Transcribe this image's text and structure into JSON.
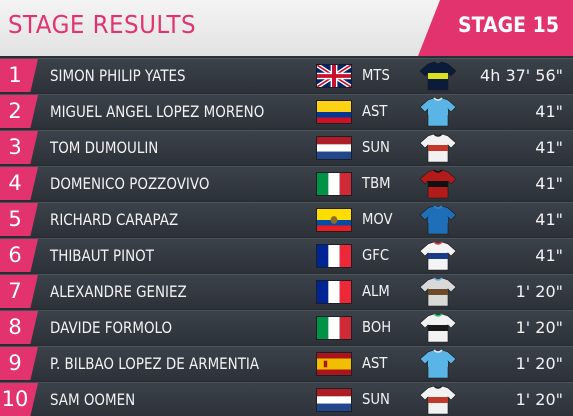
{
  "header": {
    "title": "STAGE RESULTS",
    "stage": "STAGE 15",
    "accent_color": "#e2336e"
  },
  "rows": [
    {
      "pos": "1",
      "name": "SIMON PHILIP YATES",
      "flag": "gbr-flag",
      "team": "MTS",
      "jersey": "mitchelton-scott-jersey",
      "time": "4h 37' 56\""
    },
    {
      "pos": "2",
      "name": "MIGUEL ANGEL LOPEZ MORENO",
      "flag": "col-flag",
      "team": "AST",
      "jersey": "astana-jersey",
      "time": "41\""
    },
    {
      "pos": "3",
      "name": "TOM DUMOULIN",
      "flag": "ned-flag",
      "team": "SUN",
      "jersey": "sunweb-jersey",
      "time": "41\""
    },
    {
      "pos": "4",
      "name": "DOMENICO POZZOVIVO",
      "flag": "ita-flag",
      "team": "TBM",
      "jersey": "bahrain-merida-jersey",
      "time": "41\""
    },
    {
      "pos": "5",
      "name": "RICHARD CARAPAZ",
      "flag": "ecu-flag",
      "team": "MOV",
      "jersey": "movistar-jersey",
      "time": "41\""
    },
    {
      "pos": "6",
      "name": "THIBAUT PINOT",
      "flag": "fra-flag",
      "team": "GFC",
      "jersey": "groupama-fdj-jersey",
      "time": "41\""
    },
    {
      "pos": "7",
      "name": "ALEXANDRE GENIEZ",
      "flag": "fra-flag",
      "team": "ALM",
      "jersey": "ag2r-jersey",
      "time": "1' 20\""
    },
    {
      "pos": "8",
      "name": "DAVIDE FORMOLO",
      "flag": "ita-flag",
      "team": "BOH",
      "jersey": "bora-hansgrohe-jersey",
      "time": "1' 20\""
    },
    {
      "pos": "9",
      "name": "P. BILBAO LOPEZ DE ARMENTIA",
      "flag": "esp-flag",
      "team": "AST",
      "jersey": "astana-jersey",
      "time": "1' 20\""
    },
    {
      "pos": "10",
      "name": "SAM OOMEN",
      "flag": "ned-flag",
      "team": "SUN",
      "jersey": "sunweb-jersey",
      "time": "1' 20\""
    }
  ]
}
